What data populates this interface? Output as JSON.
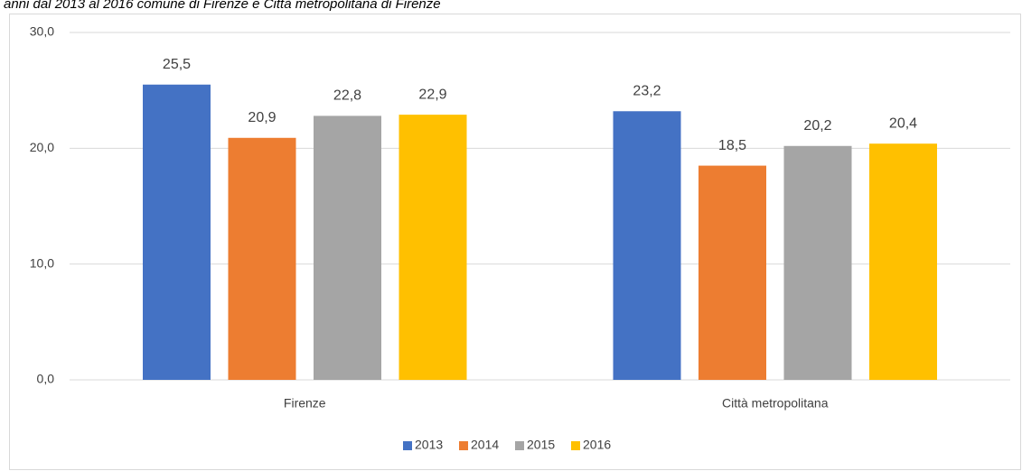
{
  "chart_data": {
    "type": "bar",
    "title": "anni dal 2013 al 2016 comune di Firenze e Città metropolitana di Firenze",
    "categories": [
      "Firenze",
      "Città metropolitana"
    ],
    "series": [
      {
        "name": "2013",
        "color": "#4472c4",
        "values": [
          25.5,
          23.2
        ],
        "value_labels": [
          "25,5",
          "23,2"
        ]
      },
      {
        "name": "2014",
        "color": "#ed7d31",
        "values": [
          20.9,
          18.5
        ],
        "value_labels": [
          "20,9",
          "18,5"
        ]
      },
      {
        "name": "2015",
        "color": "#a5a5a5",
        "values": [
          22.8,
          20.2
        ],
        "value_labels": [
          "22,8",
          "20,2"
        ]
      },
      {
        "name": "2016",
        "color": "#ffc000",
        "values": [
          22.9,
          20.4
        ],
        "value_labels": [
          "22,9",
          "20,4"
        ]
      }
    ],
    "ylim": [
      0,
      30
    ],
    "yticks": [
      {
        "value": 0,
        "label": "0,0"
      },
      {
        "value": 10,
        "label": "10,0"
      },
      {
        "value": 20,
        "label": "20,0"
      },
      {
        "value": 30,
        "label": "30,0"
      }
    ],
    "grid": true,
    "legend": "bottom"
  }
}
